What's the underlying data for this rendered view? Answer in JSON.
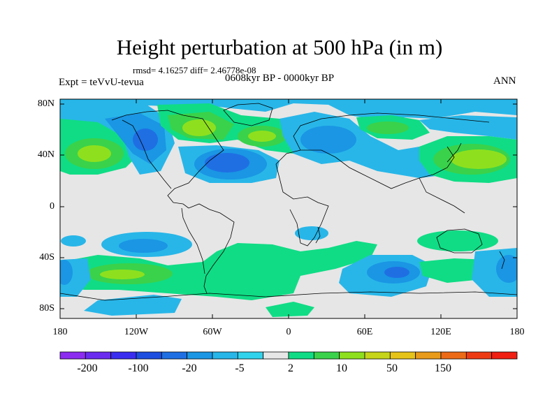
{
  "title": "Height perturbation at 500 hPa (in m)",
  "stats": "rmsd= 4.16257 diff= 2.46778e-08",
  "period": "0608kyr BP - 0000kyr BP",
  "experiment": "Expt = teVvU-tevua",
  "season": "ANN",
  "lat_labels": [
    "80N",
    "40N",
    "0",
    "40S",
    "80S"
  ],
  "lon_labels": [
    "180",
    "120W",
    "60W",
    "0",
    "60E",
    "120E",
    "180"
  ],
  "colorbar": {
    "colors": [
      "#8c2cf0",
      "#6a2cef",
      "#3a2df0",
      "#1e4ee0",
      "#1f6fe3",
      "#1a96e4",
      "#28b6e8",
      "#31d3ec",
      "#e6e6e6",
      "#10dc85",
      "#3ad24a",
      "#8ee01e",
      "#c6d41a",
      "#e6c319",
      "#e89a1a",
      "#ec6a16",
      "#ee3a13",
      "#f01f11"
    ],
    "tick_labels": [
      "-200",
      "-100",
      "-20",
      "-5",
      "2",
      "10",
      "50",
      "150"
    ]
  },
  "map_legend_colors": {
    "neutral": "#e6e6e6",
    "light_blue": "#28b6e8",
    "blue": "#1a96e4",
    "dark_blue": "#1f6fe3",
    "teal": "#10dc85",
    "green": "#3ad24a",
    "yellow_green": "#8ee01e",
    "yellow": "#c6d41a"
  }
}
